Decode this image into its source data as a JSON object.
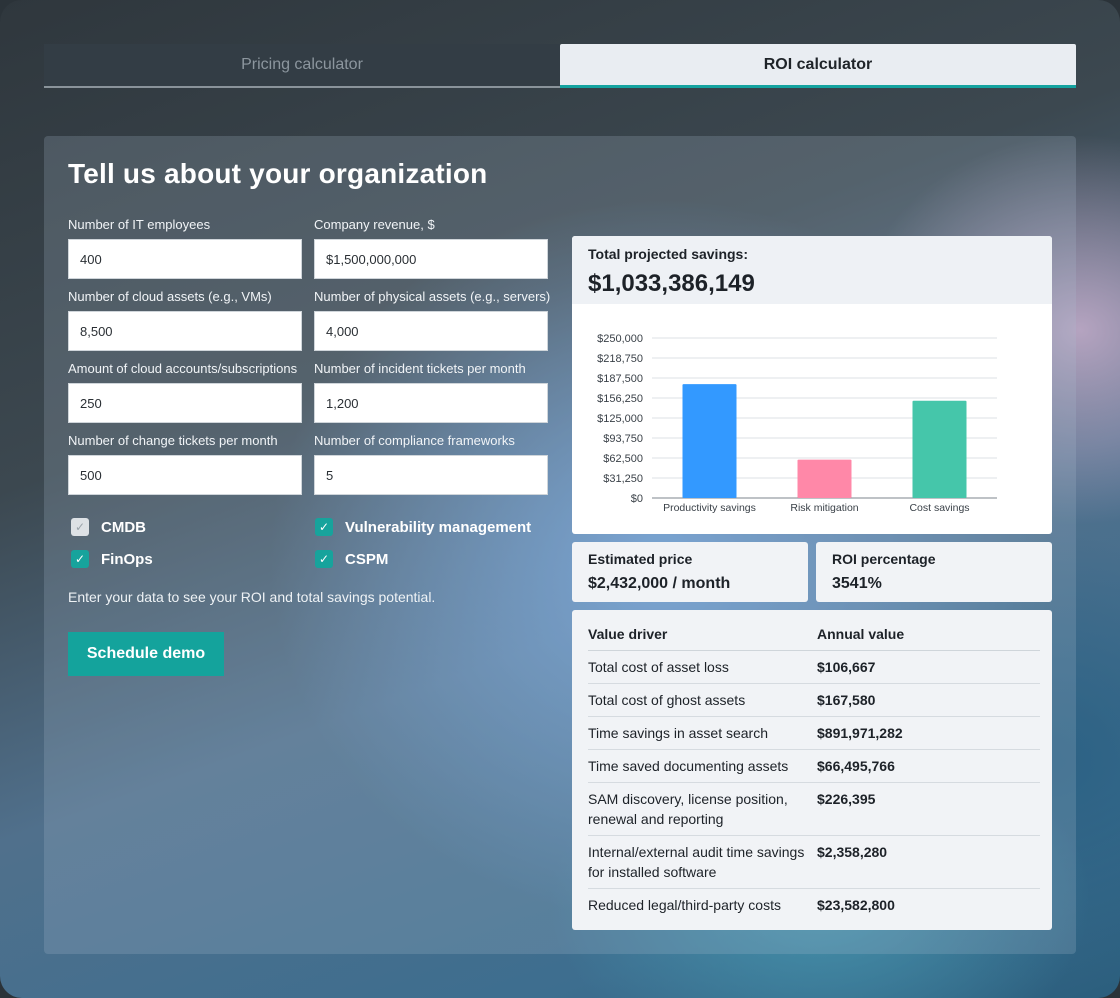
{
  "tabs": [
    {
      "label": "Pricing calculator",
      "active": false
    },
    {
      "label": "ROI calculator",
      "active": true
    }
  ],
  "form": {
    "title": "Tell us about your organization",
    "fields": [
      {
        "label": "Number of IT employees",
        "value": "400"
      },
      {
        "label": "Company revenue, $",
        "value": "$1,500,000,000"
      },
      {
        "label": "Number of cloud assets (e.g., VMs)",
        "value": "8,500"
      },
      {
        "label": "Number of physical assets (e.g., servers)",
        "value": "4,000"
      },
      {
        "label": "Amount of cloud accounts/subscriptions",
        "value": "250"
      },
      {
        "label": "Number of incident tickets per month",
        "value": "1,200"
      },
      {
        "label": "Number of change tickets per month",
        "value": "500"
      },
      {
        "label": "Number of compliance frameworks",
        "value": "5"
      }
    ],
    "checkboxes": [
      {
        "label": "CMDB",
        "checked": false
      },
      {
        "label": "Vulnerability management",
        "checked": true
      },
      {
        "label": "FinOps",
        "checked": true
      },
      {
        "label": "CSPM",
        "checked": true
      }
    ],
    "hint": "Enter your data to see your ROI and total savings potential.",
    "demo_button": "Schedule demo"
  },
  "savings": {
    "label": "Total projected savings:",
    "value": "$1,033,386,149"
  },
  "chart_data": {
    "type": "bar",
    "categories": [
      "Productivity savings",
      "Risk mitigation",
      "Cost savings"
    ],
    "values": [
      178000,
      60000,
      152000
    ],
    "colors": [
      "#3399ff",
      "#ff88a8",
      "#45c6aa"
    ],
    "ylim": [
      0,
      250000
    ],
    "yticks": [
      0,
      31250,
      62500,
      93750,
      125000,
      156250,
      187500,
      218750,
      250000
    ],
    "ytick_labels": [
      "$0",
      "$31,250",
      "$62,500",
      "$93,750",
      "$125,000",
      "$156,250",
      "$187,500",
      "$218,750",
      "$250,000"
    ],
    "title": "",
    "xlabel": "",
    "ylabel": "",
    "grid": true
  },
  "price": {
    "label": "Estimated price",
    "value": "$2,432,000 / month"
  },
  "roi": {
    "label": "ROI percentage",
    "value": "3541%"
  },
  "value_table": {
    "headers": [
      "Value driver",
      "Annual value"
    ],
    "rows": [
      {
        "driver": "Total cost of asset loss",
        "value": "$106,667"
      },
      {
        "driver": "Total cost of ghost assets",
        "value": "$167,580"
      },
      {
        "driver": "Time savings in asset search",
        "value": "$891,971,282"
      },
      {
        "driver": "Time saved documenting assets",
        "value": "$66,495,766"
      },
      {
        "driver": "SAM discovery, license position, renewal and reporting",
        "value": "$226,395"
      },
      {
        "driver": "Internal/external audit time savings for installed software",
        "value": "$2,358,280"
      },
      {
        "driver": "Reduced legal/third-party costs",
        "value": "$23,582,800"
      }
    ]
  },
  "icons": {
    "check": "checkmark-icon"
  }
}
